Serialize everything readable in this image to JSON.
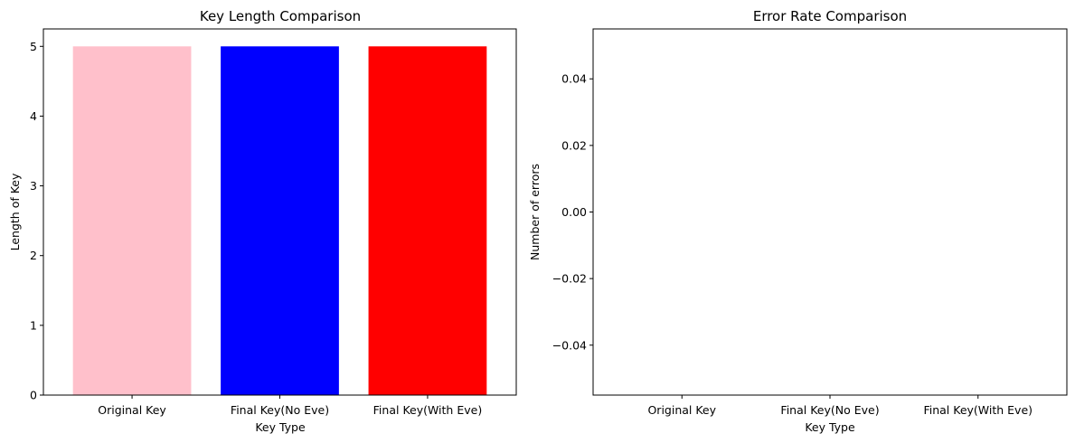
{
  "chart_data": [
    {
      "type": "bar",
      "title": "Key Length Comparison",
      "xlabel": "Key Type",
      "ylabel": "Length of Key",
      "categories": [
        "Original Key",
        "Final Key(No Eve)",
        "Final Key(With Eve)"
      ],
      "values": [
        5,
        5,
        5
      ],
      "colors": [
        "#ffc0cb",
        "#0000ff",
        "#ff0000"
      ],
      "ylim": [
        0,
        5.25
      ],
      "yticks": [
        0,
        1,
        2,
        3,
        4,
        5
      ],
      "ytick_labels": [
        "0",
        "1",
        "2",
        "3",
        "4",
        "5"
      ],
      "grid": false
    },
    {
      "type": "bar",
      "title": "Error Rate Comparison",
      "xlabel": "Key Type",
      "ylabel": "Number of errors",
      "categories": [
        "Original Key",
        "Final Key(No Eve)",
        "Final Key(With Eve)"
      ],
      "values": [
        0,
        0,
        0
      ],
      "colors": [
        "#ffc0cb",
        "#0000ff",
        "#ff0000"
      ],
      "ylim": [
        -0.055,
        0.055
      ],
      "yticks": [
        -0.04,
        -0.02,
        0,
        0.02,
        0.04
      ],
      "ytick_labels": [
        "−0.04",
        "−0.02",
        "0.00",
        "0.02",
        "0.04"
      ],
      "grid": false
    }
  ]
}
